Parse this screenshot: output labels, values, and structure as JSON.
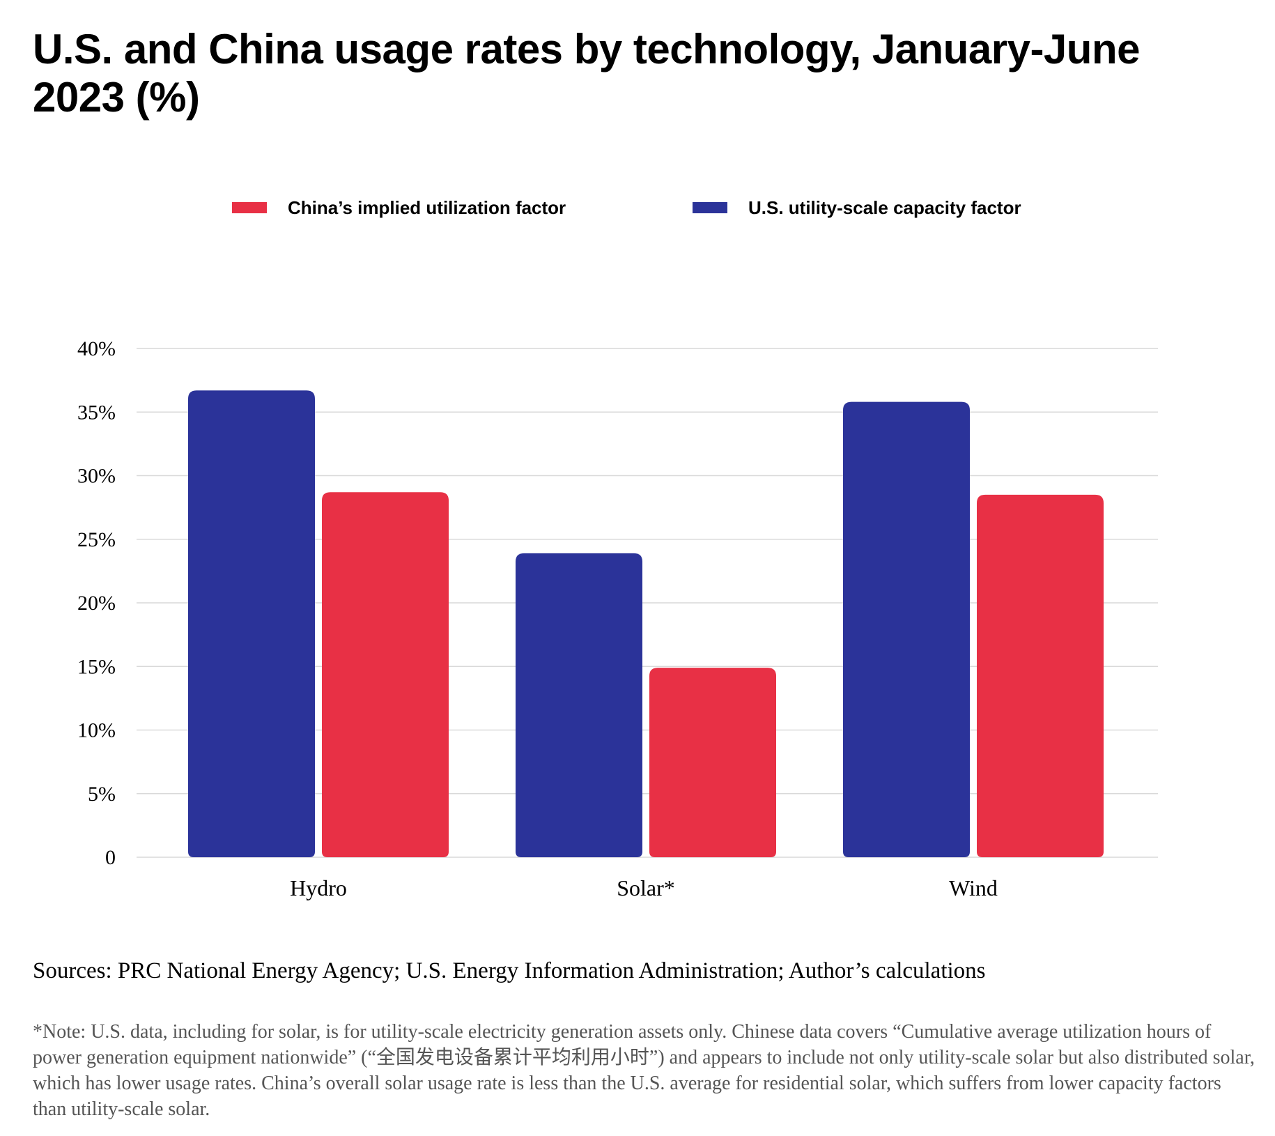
{
  "title": "U.S. and China usage rates by technology, January-June 2023 (%)",
  "legend": {
    "china_label": "China’s implied utilization factor",
    "us_label": "U.S. utility-scale capacity factor"
  },
  "colors": {
    "china": "#e83045",
    "us": "#2b3399",
    "grid": "#d9d9d9"
  },
  "chart_data": {
    "type": "bar",
    "categories": [
      "Hydro",
      "Solar*",
      "Wind"
    ],
    "series": [
      {
        "name": "U.S. utility-scale capacity factor",
        "values": [
          36.7,
          23.9,
          35.8
        ]
      },
      {
        "name": "China’s implied utilization factor",
        "values": [
          28.7,
          14.9,
          28.5
        ]
      }
    ],
    "y_ticks": [
      "0",
      "5%",
      "10%",
      "15%",
      "20%",
      "25%",
      "30%",
      "35%",
      "40%"
    ],
    "ylim": [
      0,
      40
    ],
    "grid": true,
    "legend_position": "top"
  },
  "sources": "Sources: PRC National Energy Agency; U.S. Energy Information Administration; Author’s calculations",
  "note": "*Note: U.S. data, including for solar, is for utility-scale electricity generation assets only. Chinese data covers “Cumulative average utilization hours of power generation equipment nationwide” (“全国发电设备累计平均利用小时”) and appears to include not only utility-scale solar but also distributed solar, which has lower usage rates. China’s overall solar usage rate is less than the U.S. average for residential solar, which suffers from lower capacity factors than utility-scale solar."
}
